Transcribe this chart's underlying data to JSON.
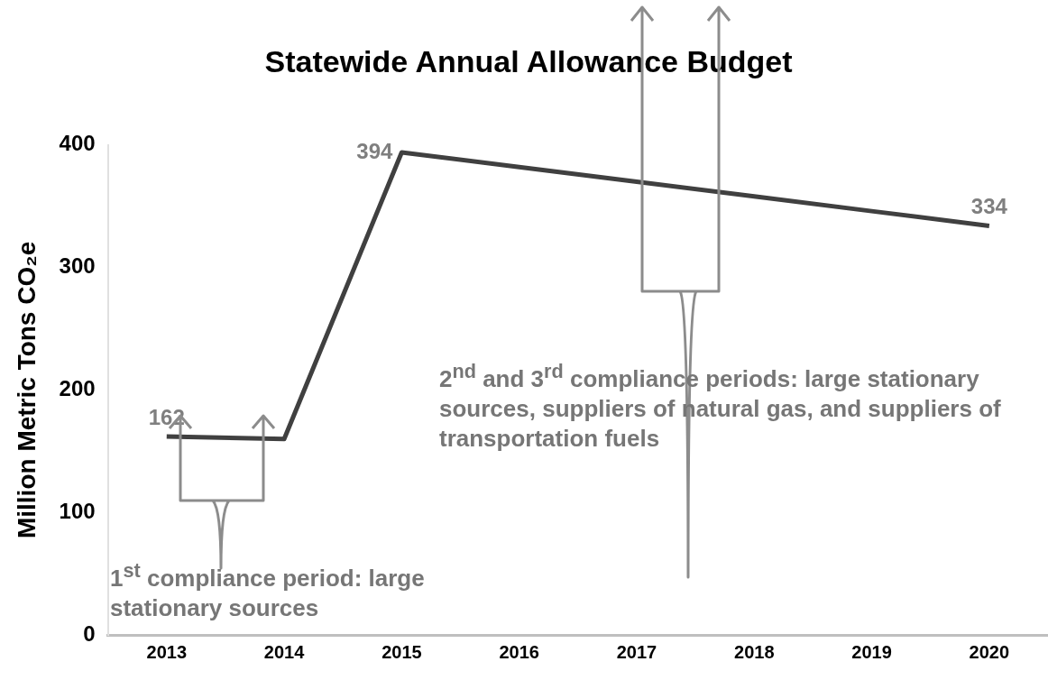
{
  "chart_data": {
    "type": "line",
    "title": "Statewide Annual Allowance Budget",
    "ylabel": "Million Metric Tons CO₂e",
    "categories": [
      "2013",
      "2014",
      "2015",
      "2016",
      "2017",
      "2018",
      "2019",
      "2020"
    ],
    "series": [
      {
        "color": "#404040",
        "values": [
          162,
          160,
          394,
          382,
          370,
          358,
          346,
          334
        ],
        "value_labels": [
          "162",
          null,
          "394",
          null,
          null,
          null,
          null,
          "334"
        ]
      }
    ],
    "ylim": [
      0,
      400
    ],
    "yticks": [
      0,
      100,
      200,
      300,
      400
    ],
    "grid": false,
    "legend": false,
    "marker": "none",
    "line_style": "solid",
    "annotations": [
      "1$^{st}$ compliance period: large stationary sources",
      "2$^{nd}$ and 3$^{rd}$ compliance periods: large stationary sources, suppliers of natural gas, and suppliers of transportation fuels"
    ]
  }
}
